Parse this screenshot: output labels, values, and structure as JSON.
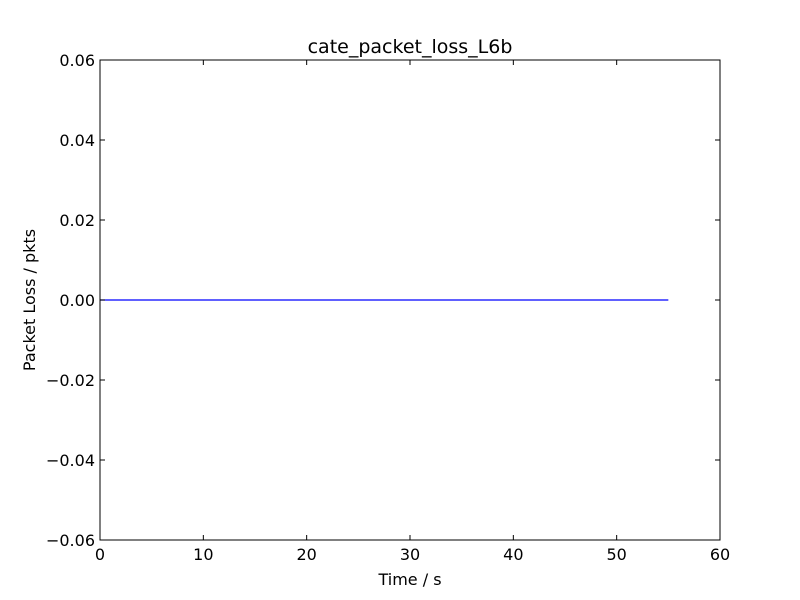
{
  "chart_data": {
    "type": "line",
    "title": "cate_packet_loss_L6b",
    "xlabel": "Time / s",
    "ylabel": "Packet Loss / pkts",
    "xlim": [
      0,
      60
    ],
    "ylim": [
      -0.06,
      0.06
    ],
    "x_ticks": [
      0,
      10,
      20,
      30,
      40,
      50,
      60
    ],
    "y_ticks": [
      -0.06,
      -0.04,
      -0.02,
      0.0,
      0.02,
      0.04,
      0.06
    ],
    "x_tick_labels": [
      "0",
      "10",
      "20",
      "30",
      "40",
      "50",
      "60"
    ],
    "y_tick_labels": [
      "−0.06",
      "−0.04",
      "−0.02",
      "0.00",
      "0.02",
      "0.04",
      "0.06"
    ],
    "grid": false,
    "series": [
      {
        "color": "#0000ff",
        "x": [
          0,
          55
        ],
        "y": [
          0,
          0
        ]
      }
    ]
  }
}
